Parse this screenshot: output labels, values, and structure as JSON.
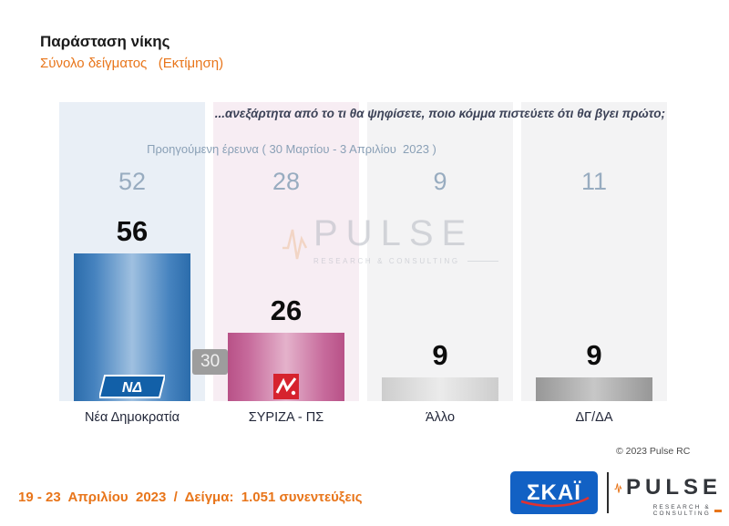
{
  "header": {
    "title": "Παράσταση νίκης",
    "subtitle": "Σύνολο δείγματος   (Εκτίμηση)"
  },
  "chart": {
    "question": "...ανεξάρτητα από το τι θα ψηφίσετε, ποιο κόμμα πιστεύετε ότι θα βγει πρώτο;",
    "previous_survey_label": "Προηγούμενη έρευνα ( 30 Μαρτίου - 3 Απριλίου  2023 )",
    "lead_badge": "30",
    "copyright": "© 2023 Pulse RC"
  },
  "chart_data": {
    "type": "bar",
    "title": "Παράσταση νίκης",
    "subtitle": "Σύνολο δείγματος (Εκτίμηση)",
    "categories": [
      "Νέα Δημοκρατία",
      "ΣΥΡΙΖΑ - ΠΣ",
      "Άλλο",
      "ΔΓ/ΔΑ"
    ],
    "series": [
      {
        "name": "Προηγούμενη έρευνα ( 30 Μαρτίου - 3 Απριλίου 2023 )",
        "values": [
          52,
          28,
          9,
          11
        ]
      },
      {
        "name": "Εκτίμηση ( 19 - 23 Απριλίου 2023 )",
        "values": [
          56,
          26,
          9,
          9
        ]
      }
    ],
    "annotations": [
      "30"
    ],
    "bar_colors": [
      "#2e74b5",
      "#c05e8e",
      "#d9d9d9",
      "#a6a6a6"
    ],
    "column_bg_colors": [
      "#e9eff6",
      "#f7edf3",
      "#f3f3f4",
      "#f3f3f4"
    ],
    "ylim": [
      0,
      60
    ],
    "grid": false,
    "legend_position": "none"
  },
  "watermark": {
    "text": "PULSE",
    "sub": "RESEARCH & CONSULTING"
  },
  "footer": {
    "fieldwork": "19 - 23  Απριλίου  2023  /  Δείγμα:  1.051 συνεντεύξεις",
    "skai_logo_text": "ΣΚΑΪ",
    "pulse_logo_text": "PULSE",
    "pulse_logo_sub": "RESEARCH & CONSULTING"
  },
  "logos": {
    "nd_logo_text": "ΝΔ",
    "accent_orange": "#e8751a"
  }
}
